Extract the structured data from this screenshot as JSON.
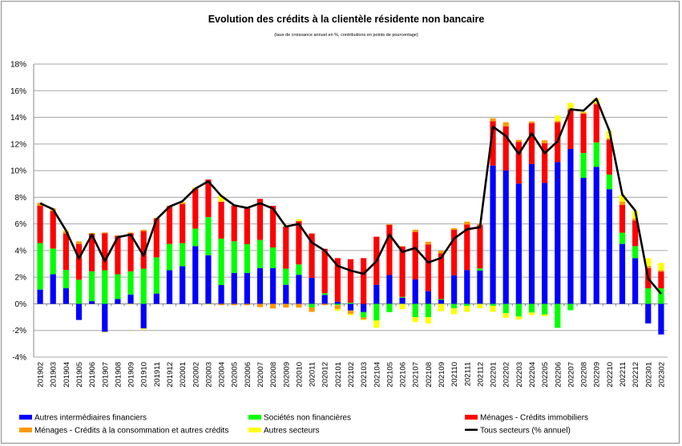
{
  "chart_data": {
    "type": "bar",
    "title": "Evolution des crédits à la clientèle résidente non bancaire",
    "subtitle": "(taux de croissance annuel en %, contributions en points de pourcentage)",
    "xlabel": "",
    "ylabel": "",
    "ylim": [
      -4,
      18
    ],
    "yticks": [
      -4,
      -2,
      0,
      2,
      4,
      6,
      8,
      10,
      12,
      14,
      16,
      18
    ],
    "ytick_suffix": "%",
    "grid": true,
    "stacked": true,
    "legend_position": "bottom",
    "categories": [
      "201902",
      "201903",
      "201904",
      "201905",
      "201906",
      "201907",
      "201908",
      "201909",
      "201910",
      "201911",
      "201912",
      "202001",
      "202002",
      "202003",
      "202004",
      "202005",
      "202006",
      "202007",
      "202008",
      "202009",
      "202010",
      "202011",
      "202012",
      "202101",
      "202102",
      "202103",
      "202104",
      "202105",
      "202106",
      "202107",
      "202108",
      "202109",
      "202110",
      "202111",
      "202112",
      "202201",
      "202202",
      "202203",
      "202204",
      "202205",
      "202206",
      "202207",
      "202208",
      "202209",
      "202210",
      "202211",
      "202212",
      "202301",
      "202302"
    ],
    "series": [
      {
        "name": "Autres intermédiaires financiers",
        "type": "bar",
        "color": "#0000ff",
        "values": [
          1.07,
          2.22,
          1.17,
          -1.21,
          0.2,
          -2.1,
          0.36,
          0.7,
          -1.85,
          0.77,
          2.52,
          2.82,
          4.33,
          3.65,
          1.41,
          2.32,
          2.32,
          2.68,
          2.68,
          1.43,
          2.18,
          1.96,
          0.67,
          0.16,
          -0.5,
          -0.62,
          1.43,
          2.16,
          0.46,
          1.83,
          0.95,
          0.3,
          2.14,
          2.54,
          2.5,
          10.38,
          10.02,
          9.03,
          10.5,
          9.07,
          10.65,
          11.63,
          9.46,
          10.28,
          8.61,
          4.5,
          3.43,
          -1.47,
          -2.3
        ]
      },
      {
        "name": "Sociétés non financières",
        "type": "bar",
        "color": "#00ff00",
        "values": [
          3.49,
          1.93,
          1.37,
          1.81,
          2.24,
          2.52,
          1.86,
          1.74,
          2.64,
          2.72,
          1.98,
          1.74,
          1.32,
          2.86,
          3.49,
          2.38,
          2.16,
          2.12,
          1.55,
          1.21,
          0.78,
          -0.28,
          0.13,
          -0.1,
          0.08,
          -0.4,
          -1.25,
          -0.62,
          0.06,
          -1.0,
          -1.0,
          0.06,
          -0.33,
          -0.15,
          0.16,
          -0.15,
          -0.7,
          -0.95,
          -0.65,
          -0.8,
          -1.8,
          -0.48,
          1.87,
          1.84,
          1.09,
          0.84,
          0.9,
          1.17,
          1.17
        ]
      },
      {
        "name": "Ménages - Crédits immobiliers",
        "type": "bar",
        "color": "#ff0000",
        "values": [
          2.8,
          2.81,
          2.74,
          2.68,
          2.82,
          2.78,
          2.88,
          2.86,
          2.82,
          2.92,
          2.82,
          2.92,
          2.98,
          2.82,
          2.76,
          2.68,
          2.78,
          3.08,
          3.13,
          3.17,
          3.25,
          3.32,
          3.33,
          3.27,
          3.27,
          3.43,
          3.61,
          3.77,
          3.77,
          3.57,
          3.51,
          3.43,
          3.42,
          3.41,
          3.25,
          3.33,
          3.31,
          3.13,
          3.07,
          2.99,
          2.98,
          2.95,
          2.94,
          2.86,
          2.62,
          2.08,
          1.92,
          1.51,
          1.25
        ]
      },
      {
        "name": "Ménages - Crédits à la consommation et autres crédits",
        "type": "bar",
        "color": "#ff9900",
        "values": [
          0.22,
          0.2,
          0.16,
          0.2,
          0.06,
          0.06,
          0.05,
          0.05,
          0.1,
          0.05,
          0.05,
          0.12,
          0.05,
          0,
          -0.1,
          -0.1,
          -0.1,
          -0.25,
          -0.35,
          -0.28,
          -0.28,
          -0.32,
          -0.1,
          -0.28,
          -0.25,
          -0.15,
          0,
          0.05,
          0.05,
          0.16,
          0.2,
          0.2,
          0.12,
          0.22,
          0.1,
          0.22,
          0.3,
          0.15,
          0.12,
          0.22,
          0.1,
          0.1,
          0.1,
          0.1,
          0.1,
          0.25,
          0.15,
          0.15,
          0.1
        ]
      },
      {
        "name": "Autres secteurs",
        "type": "bar",
        "color": "#ffff00",
        "values": [
          0,
          0,
          0.1,
          0,
          0,
          -0.05,
          0,
          -0.05,
          -0.08,
          0,
          0,
          0.05,
          0.05,
          -0.05,
          0.5,
          0.05,
          0.05,
          0,
          0,
          0.1,
          0.15,
          0,
          0,
          -0.15,
          -0.1,
          -0.05,
          -0.55,
          0,
          -0.4,
          -0.37,
          -0.47,
          -0.55,
          -0.45,
          -0.45,
          -0.33,
          -0.45,
          -0.35,
          -0.22,
          -0.2,
          -0.12,
          0.4,
          0.4,
          0.05,
          0.35,
          0.55,
          0.5,
          0.55,
          0.6,
          0.55
        ]
      },
      {
        "name": "Tous secteurs (% annuel)",
        "type": "line",
        "color": "#000000",
        "values": [
          7.55,
          7.1,
          5.5,
          3.4,
          5.2,
          3.2,
          5.0,
          5.2,
          3.6,
          6.35,
          7.3,
          7.7,
          8.65,
          9.2,
          8.1,
          7.4,
          7.2,
          7.55,
          7.15,
          5.8,
          6.0,
          4.6,
          4.0,
          2.85,
          2.5,
          2.25,
          3.2,
          5.2,
          3.9,
          4.2,
          3.1,
          3.45,
          4.9,
          5.6,
          5.75,
          13.3,
          12.6,
          11.25,
          12.8,
          11.3,
          12.2,
          14.6,
          14.5,
          15.4,
          13.0,
          8.2,
          7.0,
          1.9,
          0.75
        ]
      }
    ]
  }
}
